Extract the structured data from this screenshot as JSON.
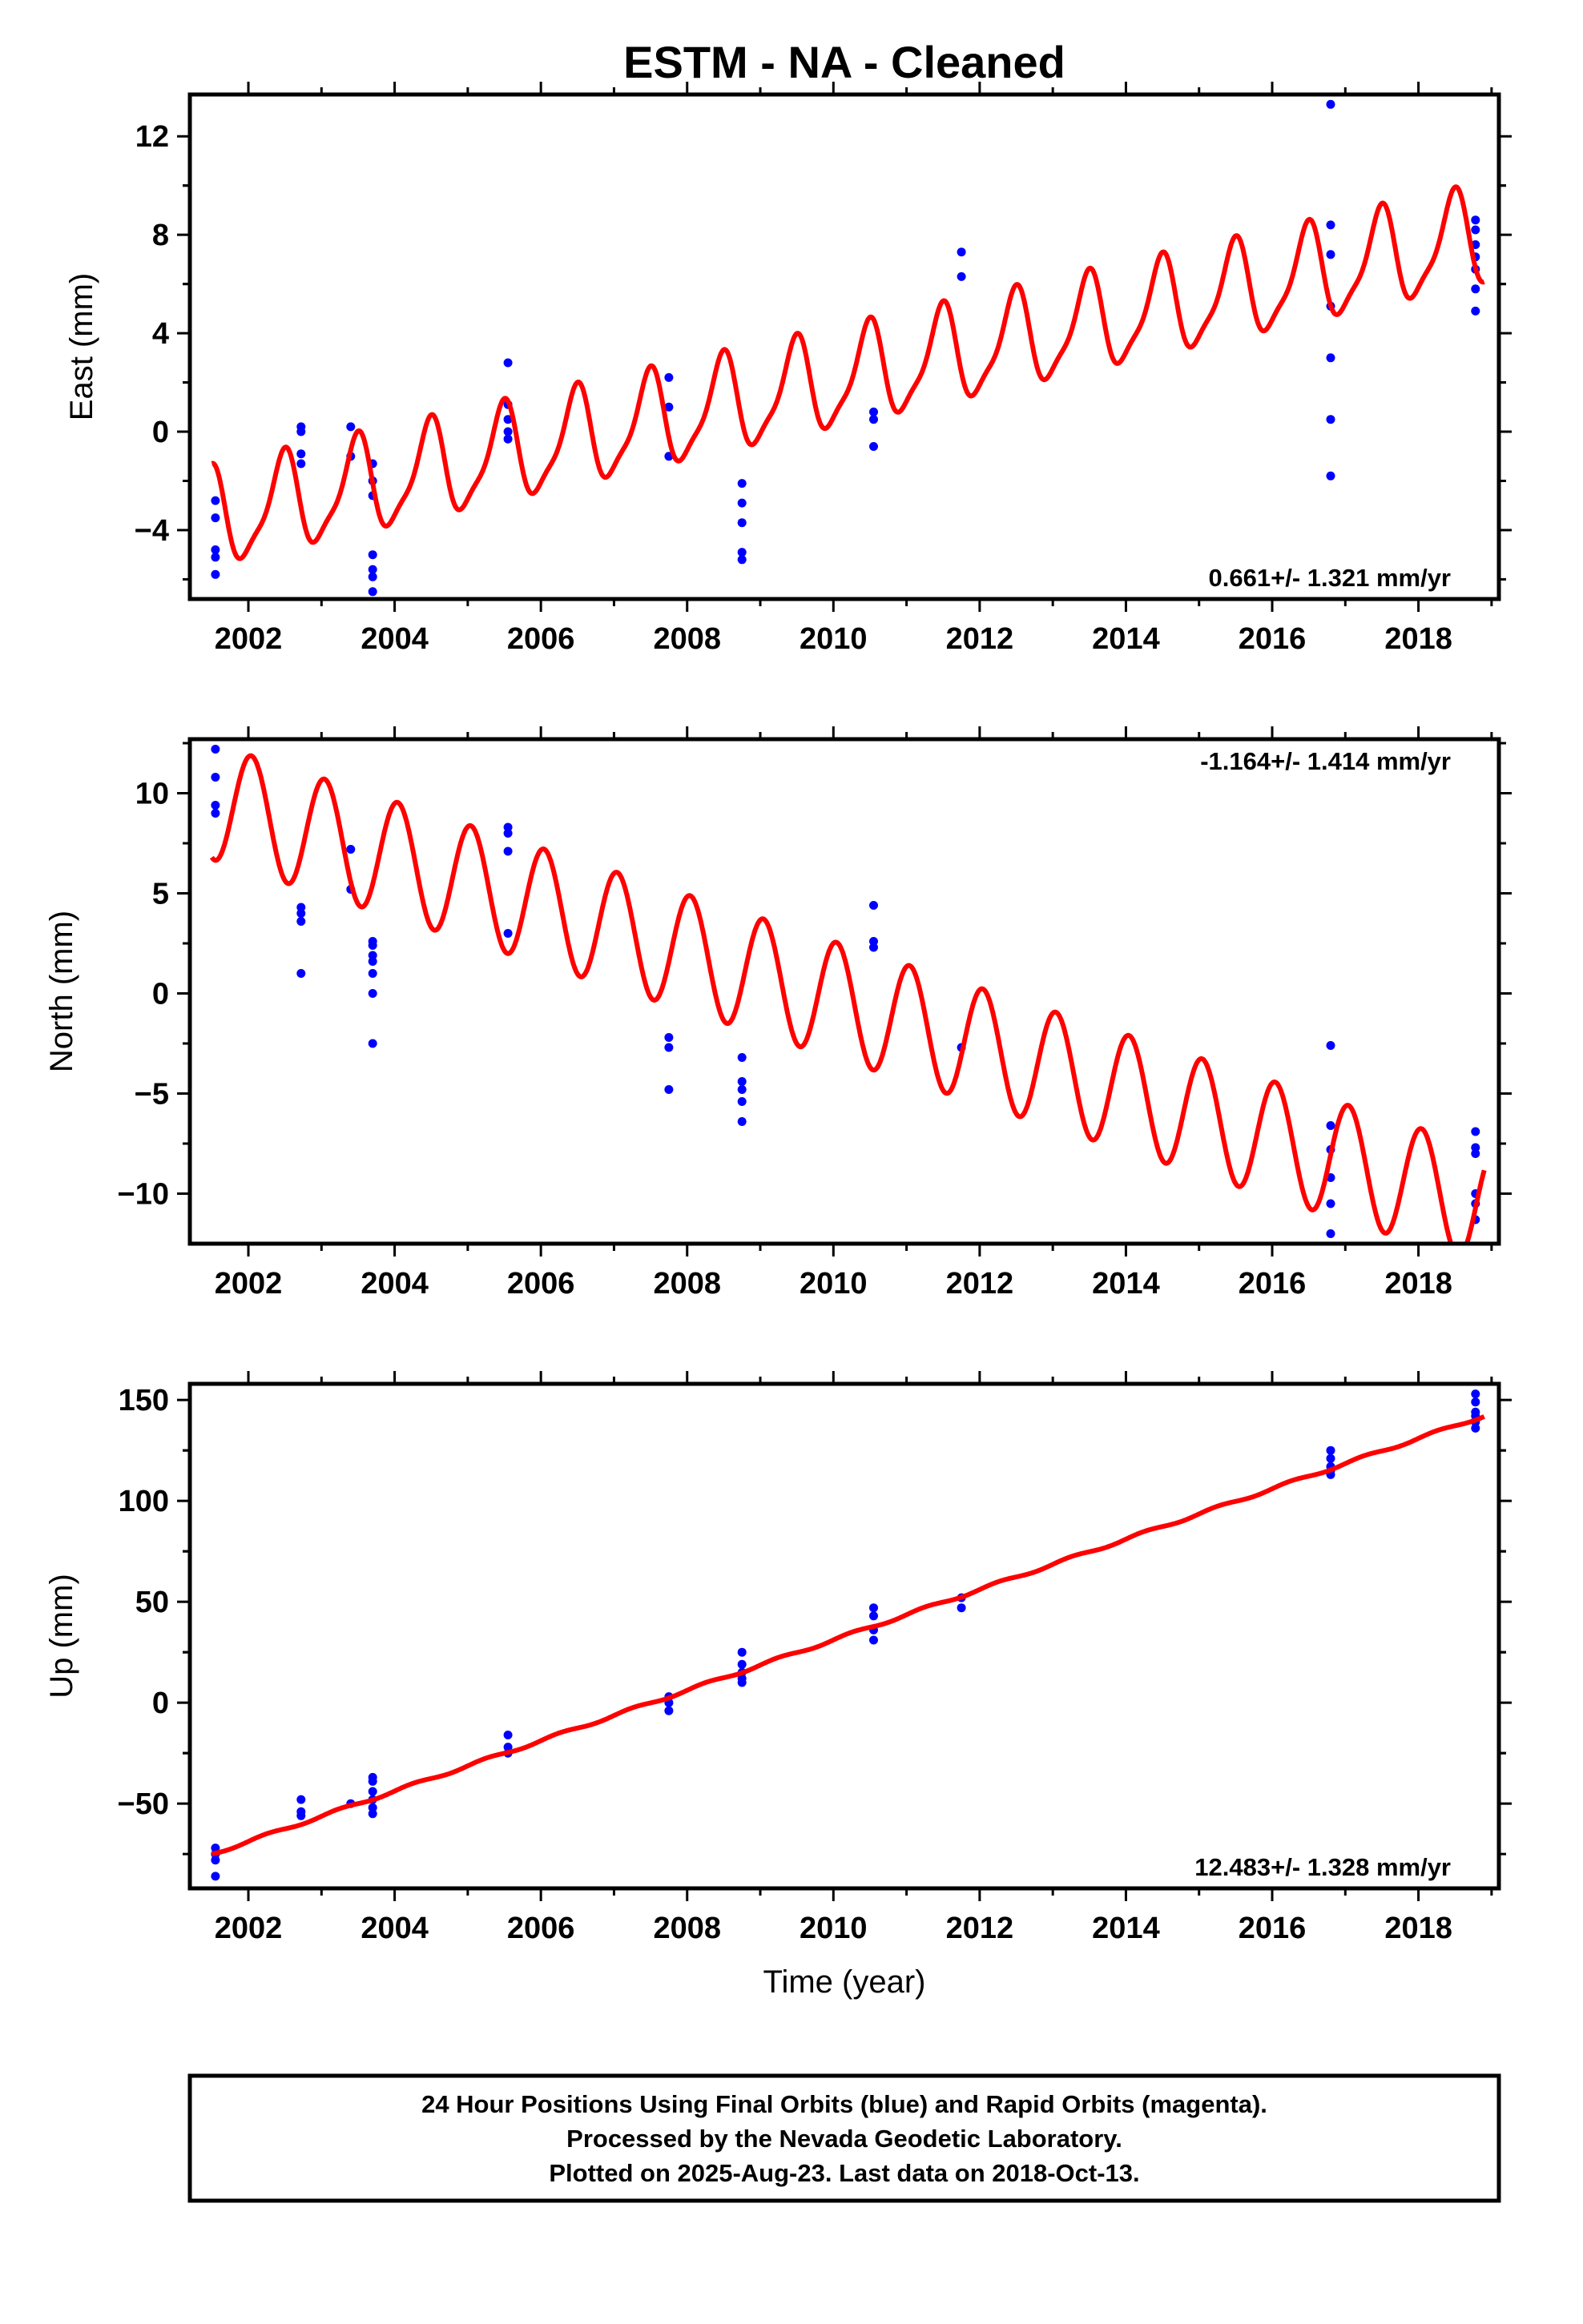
{
  "title": "ESTM  - NA - Cleaned",
  "xlabel": "Time (year)",
  "footer": {
    "line1": "24 Hour Positions Using Final Orbits (blue) and Rapid Orbits (magenta).",
    "line2": "Processed by the Nevada Geodetic Laboratory.",
    "line3": "Plotted on 2025-Aug-23. Last data on 2018-Oct-13."
  },
  "colors": {
    "points": "#0000ff",
    "fit": "#ff0000",
    "axes": "#000000"
  },
  "chart_data": [
    {
      "type": "scatter",
      "panel": "east",
      "ylabel": "East (mm)",
      "rate_label": "0.661+/- 1.321 mm/yr",
      "rate_position": "bottom-right",
      "xlim": [
        2001.2,
        2019.1
      ],
      "ylim": [
        -6.8,
        13.7
      ],
      "xticks": [
        2002,
        2004,
        2006,
        2008,
        2010,
        2012,
        2014,
        2016,
        2018
      ],
      "yticks": [
        -4,
        0,
        4,
        8,
        12
      ],
      "points": [
        [
          2001.55,
          -2.8
        ],
        [
          2001.55,
          -3.5
        ],
        [
          2001.55,
          -4.8
        ],
        [
          2001.55,
          -5.1
        ],
        [
          2001.55,
          -5.8
        ],
        [
          2002.72,
          0.2
        ],
        [
          2002.72,
          0.0
        ],
        [
          2002.72,
          -0.9
        ],
        [
          2002.72,
          -1.3
        ],
        [
          2003.4,
          0.2
        ],
        [
          2003.4,
          -1.0
        ],
        [
          2003.7,
          -1.3
        ],
        [
          2003.7,
          -2.0
        ],
        [
          2003.7,
          -2.6
        ],
        [
          2003.7,
          -5.0
        ],
        [
          2003.7,
          -5.6
        ],
        [
          2003.7,
          -5.9
        ],
        [
          2003.7,
          -6.5
        ],
        [
          2005.55,
          2.8
        ],
        [
          2005.55,
          1.1
        ],
        [
          2005.55,
          0.5
        ],
        [
          2005.55,
          0.0
        ],
        [
          2005.55,
          -0.3
        ],
        [
          2007.75,
          2.2
        ],
        [
          2007.75,
          1.0
        ],
        [
          2007.75,
          -1.0
        ],
        [
          2008.75,
          -2.1
        ],
        [
          2008.75,
          -2.9
        ],
        [
          2008.75,
          -3.7
        ],
        [
          2008.75,
          -4.9
        ],
        [
          2008.75,
          -5.2
        ],
        [
          2010.55,
          0.8
        ],
        [
          2010.55,
          0.5
        ],
        [
          2010.55,
          -0.6
        ],
        [
          2011.75,
          7.3
        ],
        [
          2011.75,
          6.3
        ],
        [
          2016.8,
          13.3
        ],
        [
          2016.8,
          8.4
        ],
        [
          2016.8,
          7.2
        ],
        [
          2016.8,
          5.1
        ],
        [
          2016.8,
          3.0
        ],
        [
          2016.8,
          0.5
        ],
        [
          2016.8,
          -1.8
        ],
        [
          2018.78,
          8.6
        ],
        [
          2018.78,
          8.2
        ],
        [
          2018.78,
          7.6
        ],
        [
          2018.78,
          7.1
        ],
        [
          2018.78,
          6.6
        ],
        [
          2018.78,
          5.8
        ],
        [
          2018.78,
          4.9
        ]
      ],
      "fit": {
        "t0": 2001.5,
        "offset": -3.6,
        "slope": 0.661,
        "annual": 1.9,
        "semiannual": 0.5,
        "phase_deg": -80,
        "phase2_deg": 60
      }
    },
    {
      "type": "scatter",
      "panel": "north",
      "ylabel": "North (mm)",
      "rate_label": "-1.164+/- 1.414 mm/yr",
      "rate_position": "top-right",
      "xlim": [
        2001.2,
        2019.1
      ],
      "ylim": [
        -12.5,
        12.7
      ],
      "xticks": [
        2002,
        2004,
        2006,
        2008,
        2010,
        2012,
        2014,
        2016,
        2018
      ],
      "yticks": [
        -10,
        -5,
        0,
        5,
        10
      ],
      "points": [
        [
          2001.55,
          12.2
        ],
        [
          2001.55,
          10.8
        ],
        [
          2001.55,
          9.4
        ],
        [
          2001.55,
          9.0
        ],
        [
          2002.72,
          4.3
        ],
        [
          2002.72,
          4.0
        ],
        [
          2002.72,
          3.6
        ],
        [
          2002.72,
          1.0
        ],
        [
          2003.4,
          7.2
        ],
        [
          2003.4,
          5.2
        ],
        [
          2003.7,
          2.6
        ],
        [
          2003.7,
          2.4
        ],
        [
          2003.7,
          1.9
        ],
        [
          2003.7,
          1.6
        ],
        [
          2003.7,
          1.0
        ],
        [
          2003.7,
          0.0
        ],
        [
          2003.7,
          -2.5
        ],
        [
          2005.55,
          8.3
        ],
        [
          2005.55,
          8.0
        ],
        [
          2005.55,
          7.1
        ],
        [
          2005.55,
          3.0
        ],
        [
          2007.75,
          -2.2
        ],
        [
          2007.75,
          -2.7
        ],
        [
          2007.75,
          -4.8
        ],
        [
          2008.75,
          -3.2
        ],
        [
          2008.75,
          -4.4
        ],
        [
          2008.75,
          -4.8
        ],
        [
          2008.75,
          -5.4
        ],
        [
          2008.75,
          -6.4
        ],
        [
          2010.55,
          4.4
        ],
        [
          2010.55,
          2.6
        ],
        [
          2010.55,
          2.3
        ],
        [
          2011.75,
          -2.7
        ],
        [
          2016.8,
          -2.6
        ],
        [
          2016.8,
          -6.6
        ],
        [
          2016.8,
          -7.8
        ],
        [
          2016.8,
          -9.2
        ],
        [
          2016.8,
          -10.5
        ],
        [
          2016.8,
          -12.0
        ],
        [
          2018.78,
          -6.9
        ],
        [
          2018.78,
          -7.7
        ],
        [
          2018.78,
          -8.0
        ],
        [
          2018.78,
          -10.0
        ],
        [
          2018.78,
          -10.5
        ],
        [
          2018.78,
          -11.3
        ]
      ],
      "fit": {
        "t0": 2001.5,
        "offset": 9.6,
        "slope": -1.164,
        "annual": 2.9,
        "semiannual": 0.0,
        "phase_deg": 75,
        "phase2_deg": 0
      }
    },
    {
      "type": "scatter",
      "panel": "up",
      "ylabel": "Up (mm)",
      "rate_label": "12.483+/- 1.328 mm/yr",
      "rate_position": "bottom-right",
      "xlim": [
        2001.2,
        2019.1
      ],
      "ylim": [
        -92,
        158
      ],
      "xticks": [
        2002,
        2004,
        2006,
        2008,
        2010,
        2012,
        2014,
        2016,
        2018
      ],
      "yticks": [
        -50,
        0,
        50,
        100,
        150
      ],
      "points": [
        [
          2001.55,
          -72
        ],
        [
          2001.55,
          -75
        ],
        [
          2001.55,
          -78
        ],
        [
          2001.55,
          -86
        ],
        [
          2002.72,
          -48
        ],
        [
          2002.72,
          -54
        ],
        [
          2002.72,
          -56
        ],
        [
          2003.4,
          -50
        ],
        [
          2003.7,
          -37
        ],
        [
          2003.7,
          -39
        ],
        [
          2003.7,
          -44
        ],
        [
          2003.7,
          -48
        ],
        [
          2003.7,
          -52
        ],
        [
          2003.7,
          -55
        ],
        [
          2005.55,
          -16
        ],
        [
          2005.55,
          -22
        ],
        [
          2005.55,
          -25
        ],
        [
          2007.75,
          3
        ],
        [
          2007.75,
          0
        ],
        [
          2007.75,
          -4
        ],
        [
          2008.75,
          25
        ],
        [
          2008.75,
          19
        ],
        [
          2008.75,
          15
        ],
        [
          2008.75,
          12
        ],
        [
          2008.75,
          10
        ],
        [
          2010.55,
          47
        ],
        [
          2010.55,
          43
        ],
        [
          2010.55,
          36
        ],
        [
          2010.55,
          31
        ],
        [
          2011.75,
          52
        ],
        [
          2011.75,
          47
        ],
        [
          2016.8,
          125
        ],
        [
          2016.8,
          121
        ],
        [
          2016.8,
          117
        ],
        [
          2016.8,
          115
        ],
        [
          2016.8,
          113
        ],
        [
          2018.78,
          153
        ],
        [
          2018.78,
          149
        ],
        [
          2018.78,
          144
        ],
        [
          2018.78,
          142
        ],
        [
          2018.78,
          139
        ],
        [
          2018.78,
          136
        ]
      ],
      "fit": {
        "t0": 2001.5,
        "offset": -75,
        "slope": 12.483,
        "annual": 0.7,
        "semiannual": 0.0,
        "phase_deg": 0,
        "phase2_deg": 0
      }
    }
  ]
}
